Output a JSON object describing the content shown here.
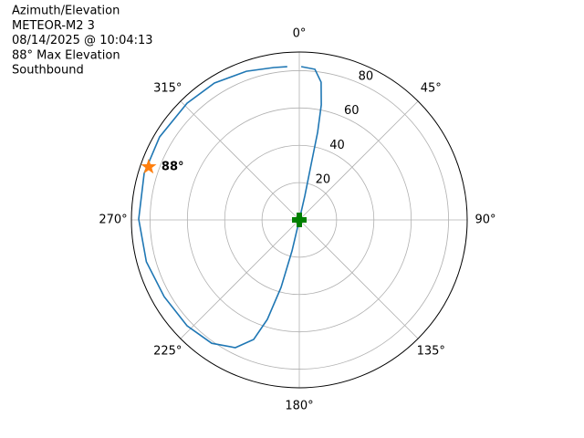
{
  "chart_data": {
    "type": "polar",
    "title": [
      "Azimuth/Elevation",
      "METEOR-M2 3",
      "08/14/2025 @ 10:04:13",
      "88° Max Elevation",
      "Southbound"
    ],
    "clockwise": true,
    "grid": true,
    "rlim": [
      0,
      90
    ],
    "rticks": [
      20,
      40,
      60,
      80
    ],
    "thetaticks": [
      {
        "value": 0,
        "label": "0°"
      },
      {
        "value": 45,
        "label": "45°"
      },
      {
        "value": 90,
        "label": "90°"
      },
      {
        "value": 135,
        "label": "135°"
      },
      {
        "value": 180,
        "label": "180°"
      },
      {
        "value": 225,
        "label": "225°"
      },
      {
        "value": 270,
        "label": "270°"
      },
      {
        "value": 315,
        "label": "315°"
      }
    ],
    "series": [
      {
        "kind": "line",
        "color": "#1f77b4",
        "theta": [
          0.7,
          5.9,
          9.0,
          10.8,
          11.8,
          12.0,
          13,
          190,
          193.2,
          195.1,
          197.8,
          200.9,
          206.6,
          215.4,
          226.7,
          240.4,
          254.7,
          270.3,
          286.7,
          300.7,
          316.1,
          328.2,
          340.4,
          350.5,
          355.5
        ],
        "r": [
          82.2,
          81.2,
          74.8,
          62.8,
          48.0,
          30.5,
          13.1,
          0.5,
          17.1,
          37.5,
          56.0,
          68.6,
          76.6,
          81.1,
          82.7,
          83.3,
          85.0,
          86.1,
          86.8,
          87.1,
          86.8,
          86.3,
          84.6,
          82.8,
          82.4
        ]
      },
      {
        "kind": "star",
        "color": "#ff7f0e",
        "theta": [
          289.4
        ],
        "r": [
          85.6
        ],
        "label": "88°"
      },
      {
        "kind": "plus",
        "color": "#008000",
        "theta": [
          0
        ],
        "r": [
          0
        ]
      }
    ]
  }
}
